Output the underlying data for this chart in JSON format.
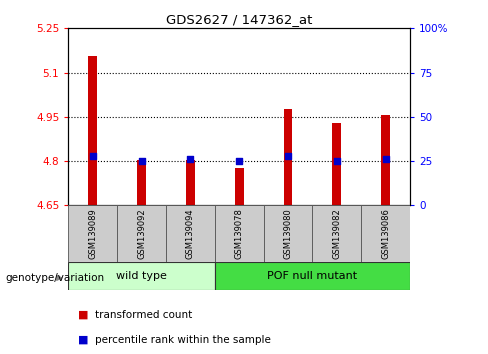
{
  "title": "GDS2627 / 147362_at",
  "samples": [
    "GSM139089",
    "GSM139092",
    "GSM139094",
    "GSM139078",
    "GSM139080",
    "GSM139082",
    "GSM139086"
  ],
  "transformed_counts": [
    5.155,
    4.802,
    4.805,
    4.775,
    4.975,
    4.93,
    4.955
  ],
  "percentile_ranks": [
    28,
    25,
    26,
    25,
    28,
    25,
    26
  ],
  "ylim_left": [
    4.65,
    5.25
  ],
  "ylim_right": [
    0,
    100
  ],
  "yticks_left": [
    4.65,
    4.8,
    4.95,
    5.1,
    5.25
  ],
  "yticks_right": [
    0,
    25,
    50,
    75,
    100
  ],
  "ytick_labels_left": [
    "4.65",
    "4.8",
    "4.95",
    "5.1",
    "5.25"
  ],
  "ytick_labels_right": [
    "0",
    "25",
    "50",
    "75",
    "100%"
  ],
  "hlines": [
    4.8,
    4.95,
    5.1
  ],
  "bar_color": "#cc0000",
  "dot_color": "#0000cc",
  "wild_type_label": "wild type",
  "pof_null_label": "POF null mutant",
  "genotype_label": "genotype/variation",
  "legend_bar_label": "transformed count",
  "legend_dot_label": "percentile rank within the sample",
  "wild_type_color": "#ccffcc",
  "pof_null_color": "#44dd44",
  "sample_bg_color": "#cccccc",
  "bar_width": 0.18,
  "dot_size": 22,
  "figsize": [
    4.88,
    3.54
  ],
  "dpi": 100
}
